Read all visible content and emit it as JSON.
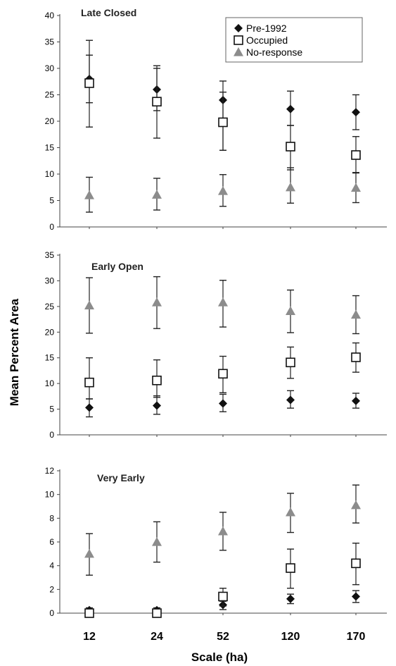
{
  "colors": {
    "axis": "#444444",
    "pre1992": "#111111",
    "occupied": "#111111",
    "noresponse": "#8c8c8c",
    "errorbar": "#222222"
  },
  "ylabel": "Mean Percent Area",
  "xlabel": "Scale (ha)",
  "categories": [
    "12",
    "24",
    "52",
    "120",
    "170"
  ],
  "legend": {
    "items": [
      {
        "label": "Pre-1992",
        "marker": "diamond"
      },
      {
        "label": "Occupied",
        "marker": "open-square"
      },
      {
        "label": "No-response",
        "marker": "triangle"
      }
    ]
  },
  "chart_data": [
    {
      "type": "scatter",
      "title": "Late Closed",
      "categories": [
        "12",
        "24",
        "52",
        "120",
        "170"
      ],
      "ylim": [
        0,
        40
      ],
      "yticks": [
        "0",
        "5",
        "10",
        "15",
        "20",
        "25",
        "30",
        "35",
        "40"
      ],
      "series": [
        {
          "name": "Pre-1992",
          "values": [
            28,
            26,
            24,
            22.3,
            21.7
          ],
          "err_low": [
            23.5,
            22,
            14.5,
            19.2,
            18.4
          ],
          "err_high": [
            32.5,
            30,
            25.5,
            25.7,
            25
          ]
        },
        {
          "name": "Occupied",
          "values": [
            27.2,
            23.7,
            19.8,
            15.2,
            13.6
          ],
          "err_low": [
            18.9,
            16.8,
            14.5,
            10.8,
            10.2
          ],
          "err_high": [
            35.3,
            30.5,
            27.6,
            19.2,
            17.1
          ]
        },
        {
          "name": "No-response",
          "values": [
            6,
            6.1,
            6.8,
            7.5,
            7.4
          ],
          "err_low": [
            2.8,
            3.2,
            3.9,
            4.5,
            4.6
          ],
          "err_high": [
            9.4,
            9.2,
            9.9,
            11.2,
            10.3
          ]
        }
      ]
    },
    {
      "type": "scatter",
      "title": "Early Open",
      "categories": [
        "12",
        "24",
        "52",
        "120",
        "170"
      ],
      "ylim": [
        0,
        35
      ],
      "yticks": [
        "0",
        "5",
        "10",
        "15",
        "20",
        "25",
        "30",
        "35"
      ],
      "series": [
        {
          "name": "Pre-1992",
          "values": [
            5.3,
            5.7,
            6.1,
            6.8,
            6.6
          ],
          "err_low": [
            3.5,
            4.0,
            4.5,
            5.2,
            5.2
          ],
          "err_high": [
            7.0,
            7.6,
            7.9,
            8.6,
            8.1
          ]
        },
        {
          "name": "Occupied",
          "values": [
            10.2,
            10.6,
            11.9,
            14.1,
            15.1
          ],
          "err_low": [
            7.0,
            7.3,
            8.2,
            11.0,
            12.2
          ],
          "err_high": [
            15.0,
            14.6,
            15.3,
            17.1,
            17.9
          ]
        },
        {
          "name": "No-response",
          "values": [
            25.2,
            25.8,
            25.8,
            24.1,
            23.4
          ],
          "err_low": [
            19.8,
            20.7,
            21.0,
            19.9,
            19.7
          ],
          "err_high": [
            30.6,
            30.8,
            30.1,
            28.2,
            27.1
          ]
        }
      ]
    },
    {
      "type": "scatter",
      "title": "Very Early",
      "categories": [
        "12",
        "24",
        "52",
        "120",
        "170"
      ],
      "ylim": [
        0,
        12
      ],
      "yticks": [
        "0",
        "2",
        "4",
        "6",
        "8",
        "10",
        "12"
      ],
      "series": [
        {
          "name": "Pre-1992",
          "values": [
            0.25,
            0.25,
            0.7,
            1.2,
            1.4
          ],
          "err_low": [
            0.05,
            0.05,
            0.3,
            0.8,
            0.9
          ],
          "err_high": [
            0.45,
            0.45,
            1.0,
            1.6,
            1.9
          ]
        },
        {
          "name": "Occupied",
          "values": [
            0,
            0,
            1.4,
            3.8,
            4.2
          ],
          "err_low": [
            0,
            0,
            0.6,
            2.1,
            2.4
          ],
          "err_high": [
            0,
            0,
            2.1,
            5.4,
            5.9
          ]
        },
        {
          "name": "No-response",
          "values": [
            5,
            6,
            6.9,
            8.5,
            9.1
          ],
          "err_low": [
            3.2,
            4.3,
            5.3,
            6.8,
            7.6
          ],
          "err_high": [
            6.7,
            7.7,
            8.5,
            10.1,
            10.8
          ]
        }
      ]
    }
  ]
}
